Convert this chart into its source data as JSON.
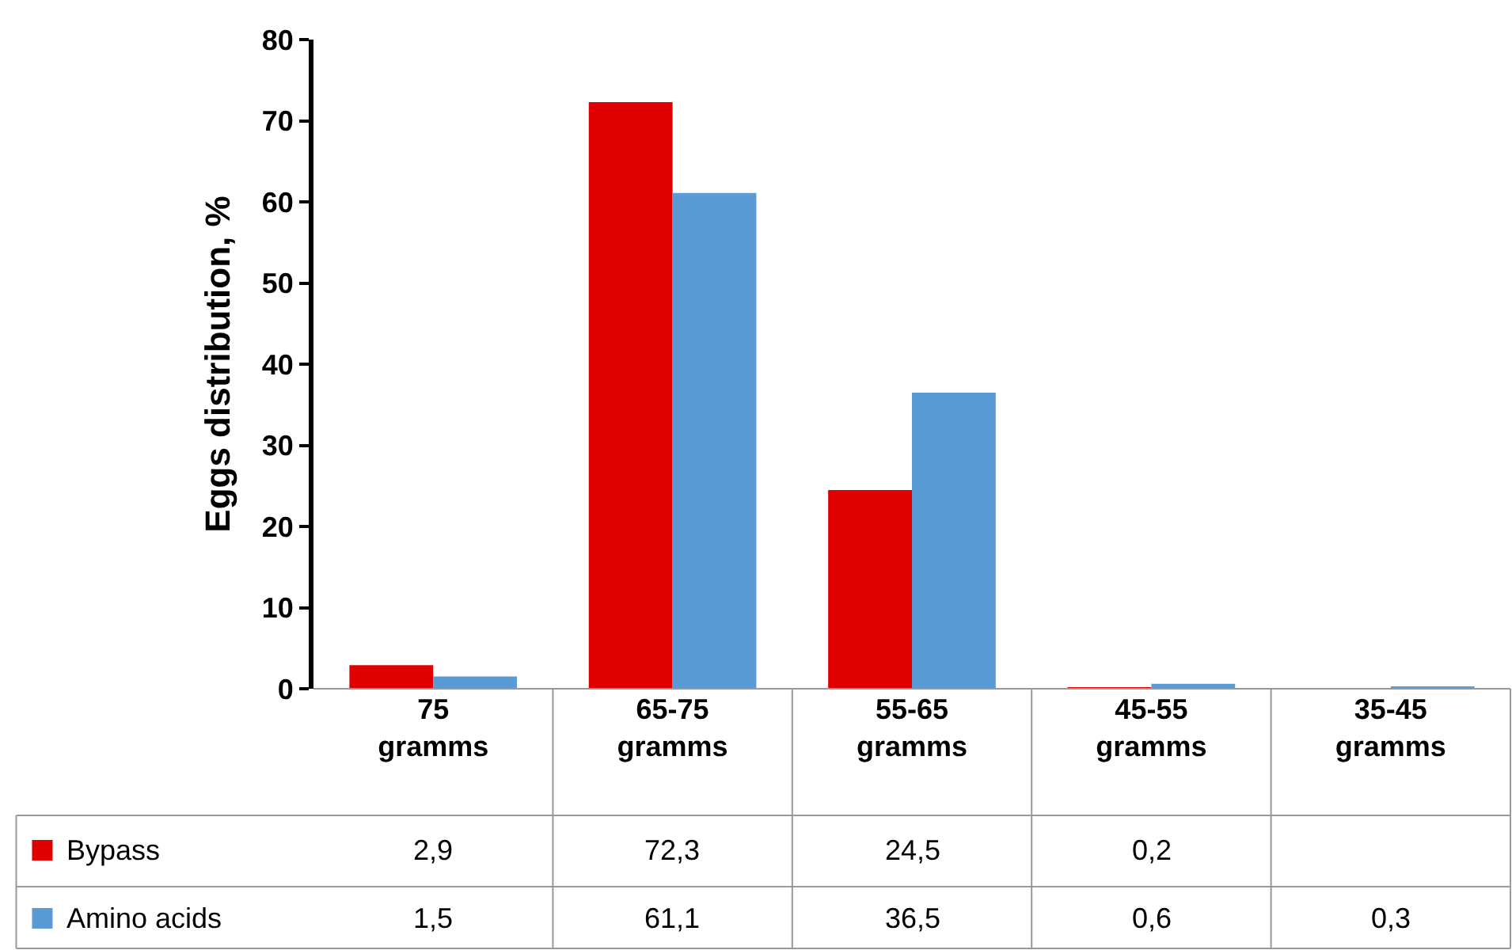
{
  "chart_data": {
    "type": "bar",
    "ylabel": "Eggs distribution, %",
    "categories": [
      "75 gramms",
      "65-75 gramms",
      "55-65 gramms",
      "45-55 gramms",
      "35-45 gramms"
    ],
    "series": [
      {
        "name": "Bypass",
        "color": "#e00000",
        "values": [
          2.9,
          72.3,
          24.5,
          0.2,
          null
        ],
        "value_labels": [
          "2,9",
          "72,3",
          "24,5",
          "0,2",
          null
        ]
      },
      {
        "name": "Amino acids",
        "color": "#5b9bd5",
        "values": [
          1.5,
          61.1,
          36.5,
          0.6,
          0.3
        ],
        "value_labels": [
          "1,5",
          "61,1",
          "36,5",
          "0,6",
          "0,3"
        ]
      }
    ],
    "ylim": [
      0,
      80
    ],
    "yticks": [
      0,
      10,
      20,
      30,
      40,
      50,
      60,
      70,
      80
    ],
    "grid": false,
    "legend": "bottom left"
  }
}
